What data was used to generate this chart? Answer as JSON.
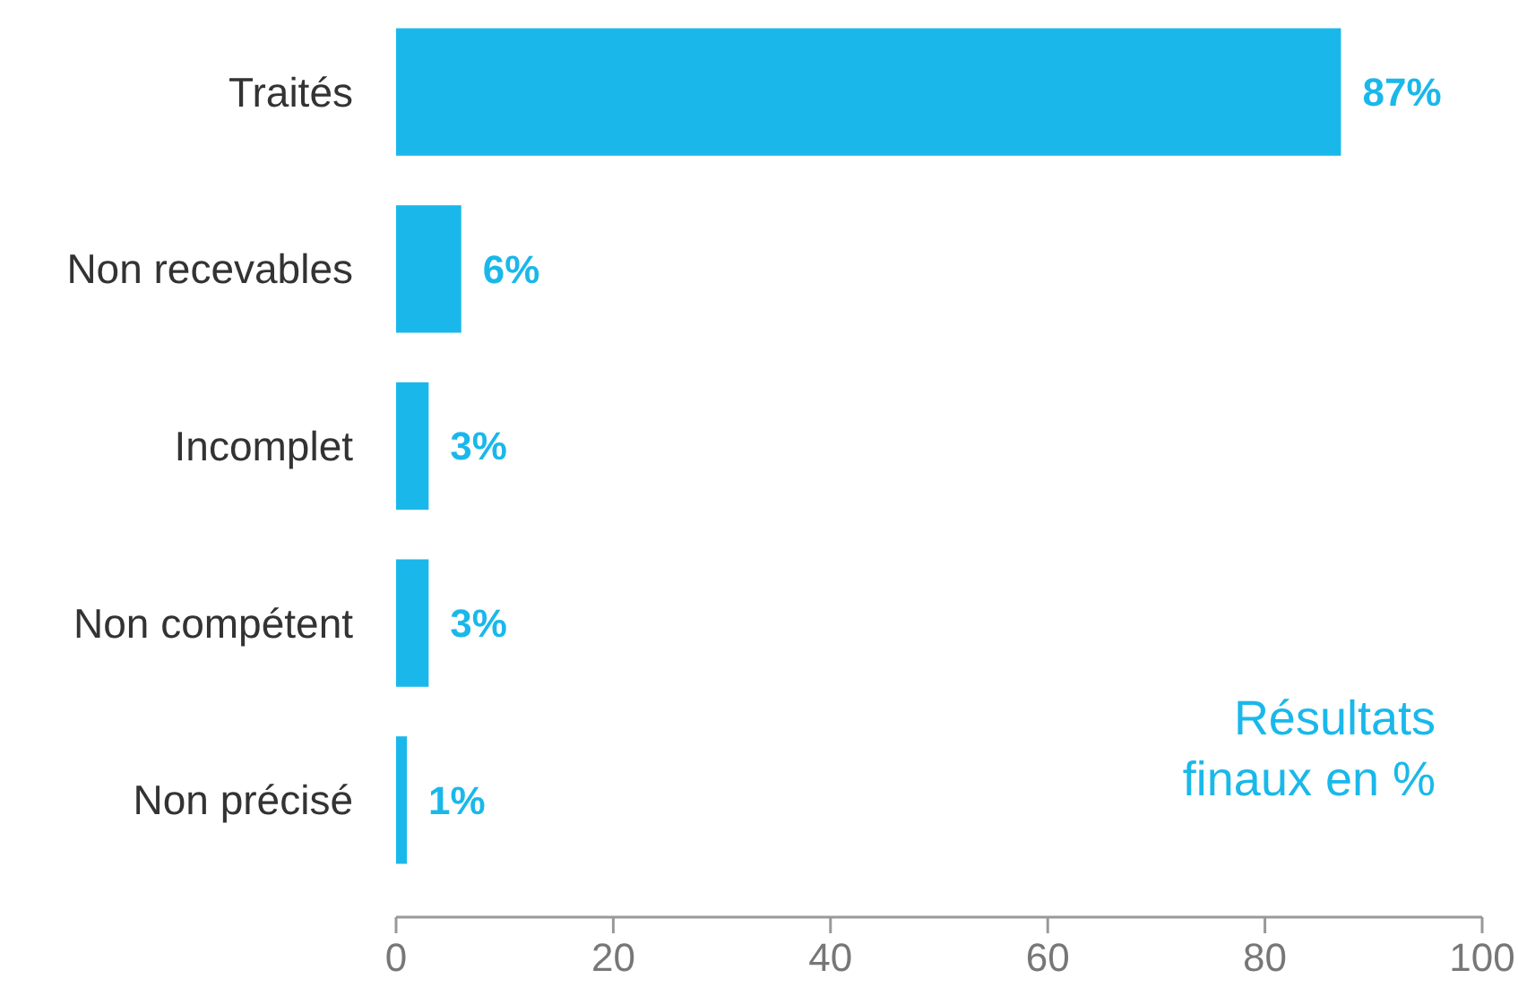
{
  "chart_data": {
    "type": "bar",
    "orientation": "horizontal",
    "categories": [
      "Traités",
      "Non recevables",
      "Incomplet",
      "Non compétent",
      "Non précisé"
    ],
    "values": [
      87,
      6,
      3,
      3,
      1
    ],
    "value_labels": [
      "87%",
      "6%",
      "3%",
      "3%",
      "1%"
    ],
    "color": "#1ab8ea",
    "xlim": [
      0,
      100
    ],
    "xticks": [
      0,
      20,
      40,
      60,
      80,
      100
    ],
    "annotations": [
      "Résultats finaux en %"
    ]
  }
}
